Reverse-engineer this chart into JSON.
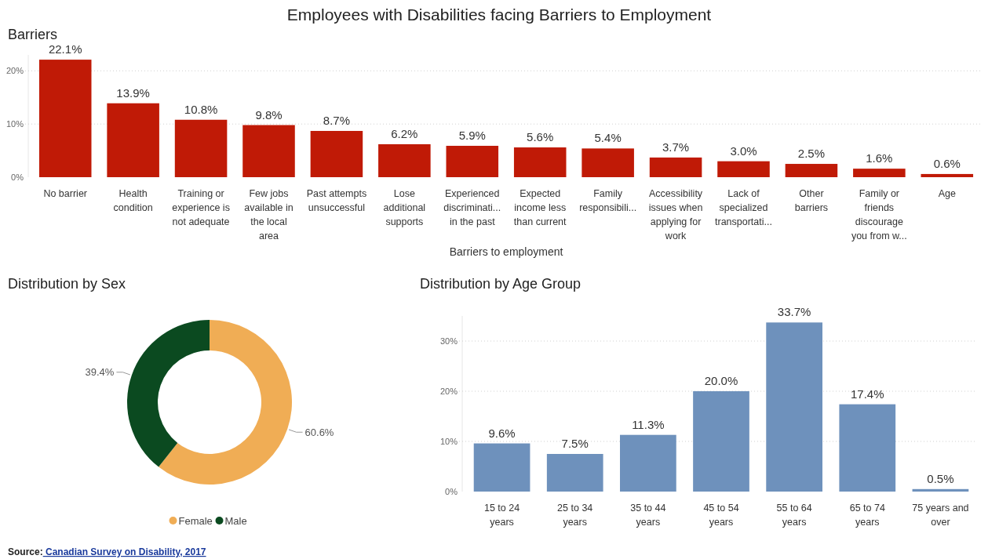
{
  "chart_data": [
    {
      "type": "bar",
      "title": "Employees with Disabilities facing Barriers to Employment",
      "subtitle": "Barriers",
      "xlabel": "Barriers to employment",
      "categories": [
        "No barrier",
        "Health condition",
        "Training or experience is not adequate",
        "Few jobs available in the local area",
        "Past attempts unsuccessful",
        "Lose additional supports",
        "Experienced discriminati... in the past",
        "Expected income less than current",
        "Family responsibili...",
        "Accessibility issues when applying for work",
        "Lack of specialized transportati...",
        "Other barriers",
        "Family or friends discourage you from w...",
        "Age"
      ],
      "values": [
        22.1,
        13.9,
        10.8,
        9.8,
        8.7,
        6.2,
        5.9,
        5.6,
        5.4,
        3.7,
        3.0,
        2.5,
        1.6,
        0.6
      ],
      "value_labels": [
        "22.1%",
        "13.9%",
        "10.8%",
        "9.8%",
        "8.7%",
        "6.2%",
        "5.9%",
        "5.6%",
        "5.4%",
        "3.7%",
        "3.0%",
        "2.5%",
        "1.6%",
        "0.6%"
      ],
      "color": "#c01a06",
      "ylim": [
        0,
        23
      ],
      "yticks": [
        {
          "value": 0,
          "label": "0%"
        },
        {
          "value": 10,
          "label": "10%"
        },
        {
          "value": 20,
          "label": "20%"
        }
      ],
      "grid": "y"
    },
    {
      "type": "donut",
      "title": "Distribution by Sex",
      "categories": [
        "Female",
        "Male"
      ],
      "values": [
        60.6,
        39.4
      ],
      "value_labels": [
        "60.6%",
        "39.4%"
      ],
      "colors": [
        "#f0ad55",
        "#0b4a20"
      ],
      "legend": "bottom"
    },
    {
      "type": "bar",
      "title": "Distribution by Age Group",
      "categories": [
        "15 to 24 years",
        "25 to 34 years",
        "35 to 44 years",
        "45 to 54 years",
        "55 to 64 years",
        "65 to 74 years",
        "75 years and over"
      ],
      "values": [
        9.6,
        7.5,
        11.3,
        20.0,
        33.7,
        17.4,
        0.5
      ],
      "value_labels": [
        "9.6%",
        "7.5%",
        "11.3%",
        "20.0%",
        "33.7%",
        "17.4%",
        "0.5%"
      ],
      "color": "#6e91bc",
      "ylim": [
        0,
        35
      ],
      "yticks": [
        {
          "value": 0,
          "label": "0%"
        },
        {
          "value": 10,
          "label": "10%"
        },
        {
          "value": 20,
          "label": "20%"
        },
        {
          "value": 30,
          "label": "30%"
        }
      ],
      "grid": "y",
      "annotations": [
        "Source: Canadian Survey on Disability, 2017"
      ]
    }
  ]
}
